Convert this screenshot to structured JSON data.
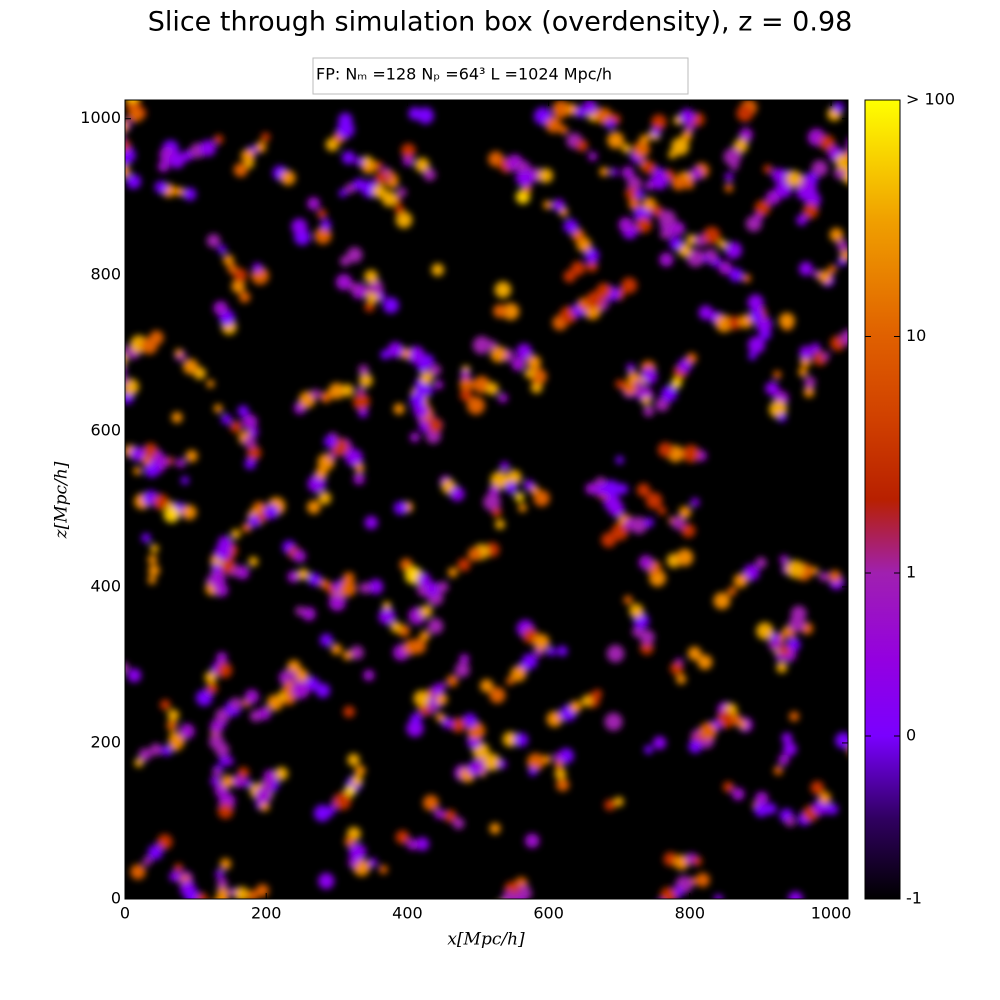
{
  "chart_data": {
    "type": "heatmap",
    "title": "Slice through simulation box (overdensity), z = 0.98",
    "legend": "FP:  Nₘ =128  Nₚ =64³  L =1024 Mpc/h",
    "x_label": "x[Mpc/h]",
    "y_label": "z[Mpc/h]",
    "xlim": [
      0,
      1024
    ],
    "ylim": [
      0,
      1024
    ],
    "xticks": [
      0,
      200,
      400,
      600,
      800,
      1000
    ],
    "yticks": [
      0,
      200,
      400,
      600,
      800,
      1000
    ],
    "colorbar": {
      "scale": "symlog",
      "zlim": [
        -1,
        100
      ],
      "ticks": [
        -1,
        0,
        1,
        10,
        {
          "value": 100,
          "label": "> 100"
        }
      ]
    }
  }
}
